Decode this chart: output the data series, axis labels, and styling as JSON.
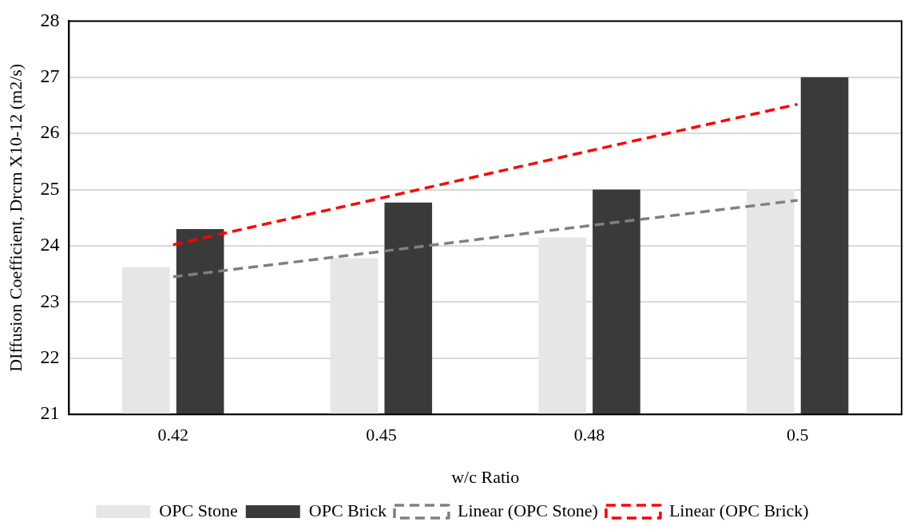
{
  "chart_data": {
    "type": "bar",
    "xlabel": "w/c Ratio",
    "ylabel": "DIffusion Coefficient, Drcm X10-12 (m2/s)",
    "categories": [
      "0.42",
      "0.45",
      "0.48",
      "0.5"
    ],
    "series": [
      {
        "name": "OPC Stone",
        "color": "#e6e6e6",
        "values": [
          23.62,
          23.78,
          24.15,
          25.0
        ]
      },
      {
        "name": "OPC Brick",
        "color": "#3a3a3a",
        "values": [
          24.3,
          24.77,
          25.0,
          27.0
        ]
      },
      {
        "name": "Linear (OPC Stone)",
        "type": "line",
        "line_style": "dashed",
        "color": "#808080",
        "values": [
          23.45,
          23.9,
          24.36,
          24.81
        ]
      },
      {
        "name": "Linear (OPC Brick)",
        "type": "line",
        "line_style": "dashed",
        "color": "#ff0000",
        "values": [
          24.02,
          24.85,
          25.69,
          26.52
        ]
      }
    ],
    "ylim": [
      21,
      28
    ],
    "yticks": [
      21,
      22,
      23,
      24,
      25,
      26,
      27,
      28
    ],
    "grid": "y",
    "legend": "bottom",
    "marker": "none"
  }
}
